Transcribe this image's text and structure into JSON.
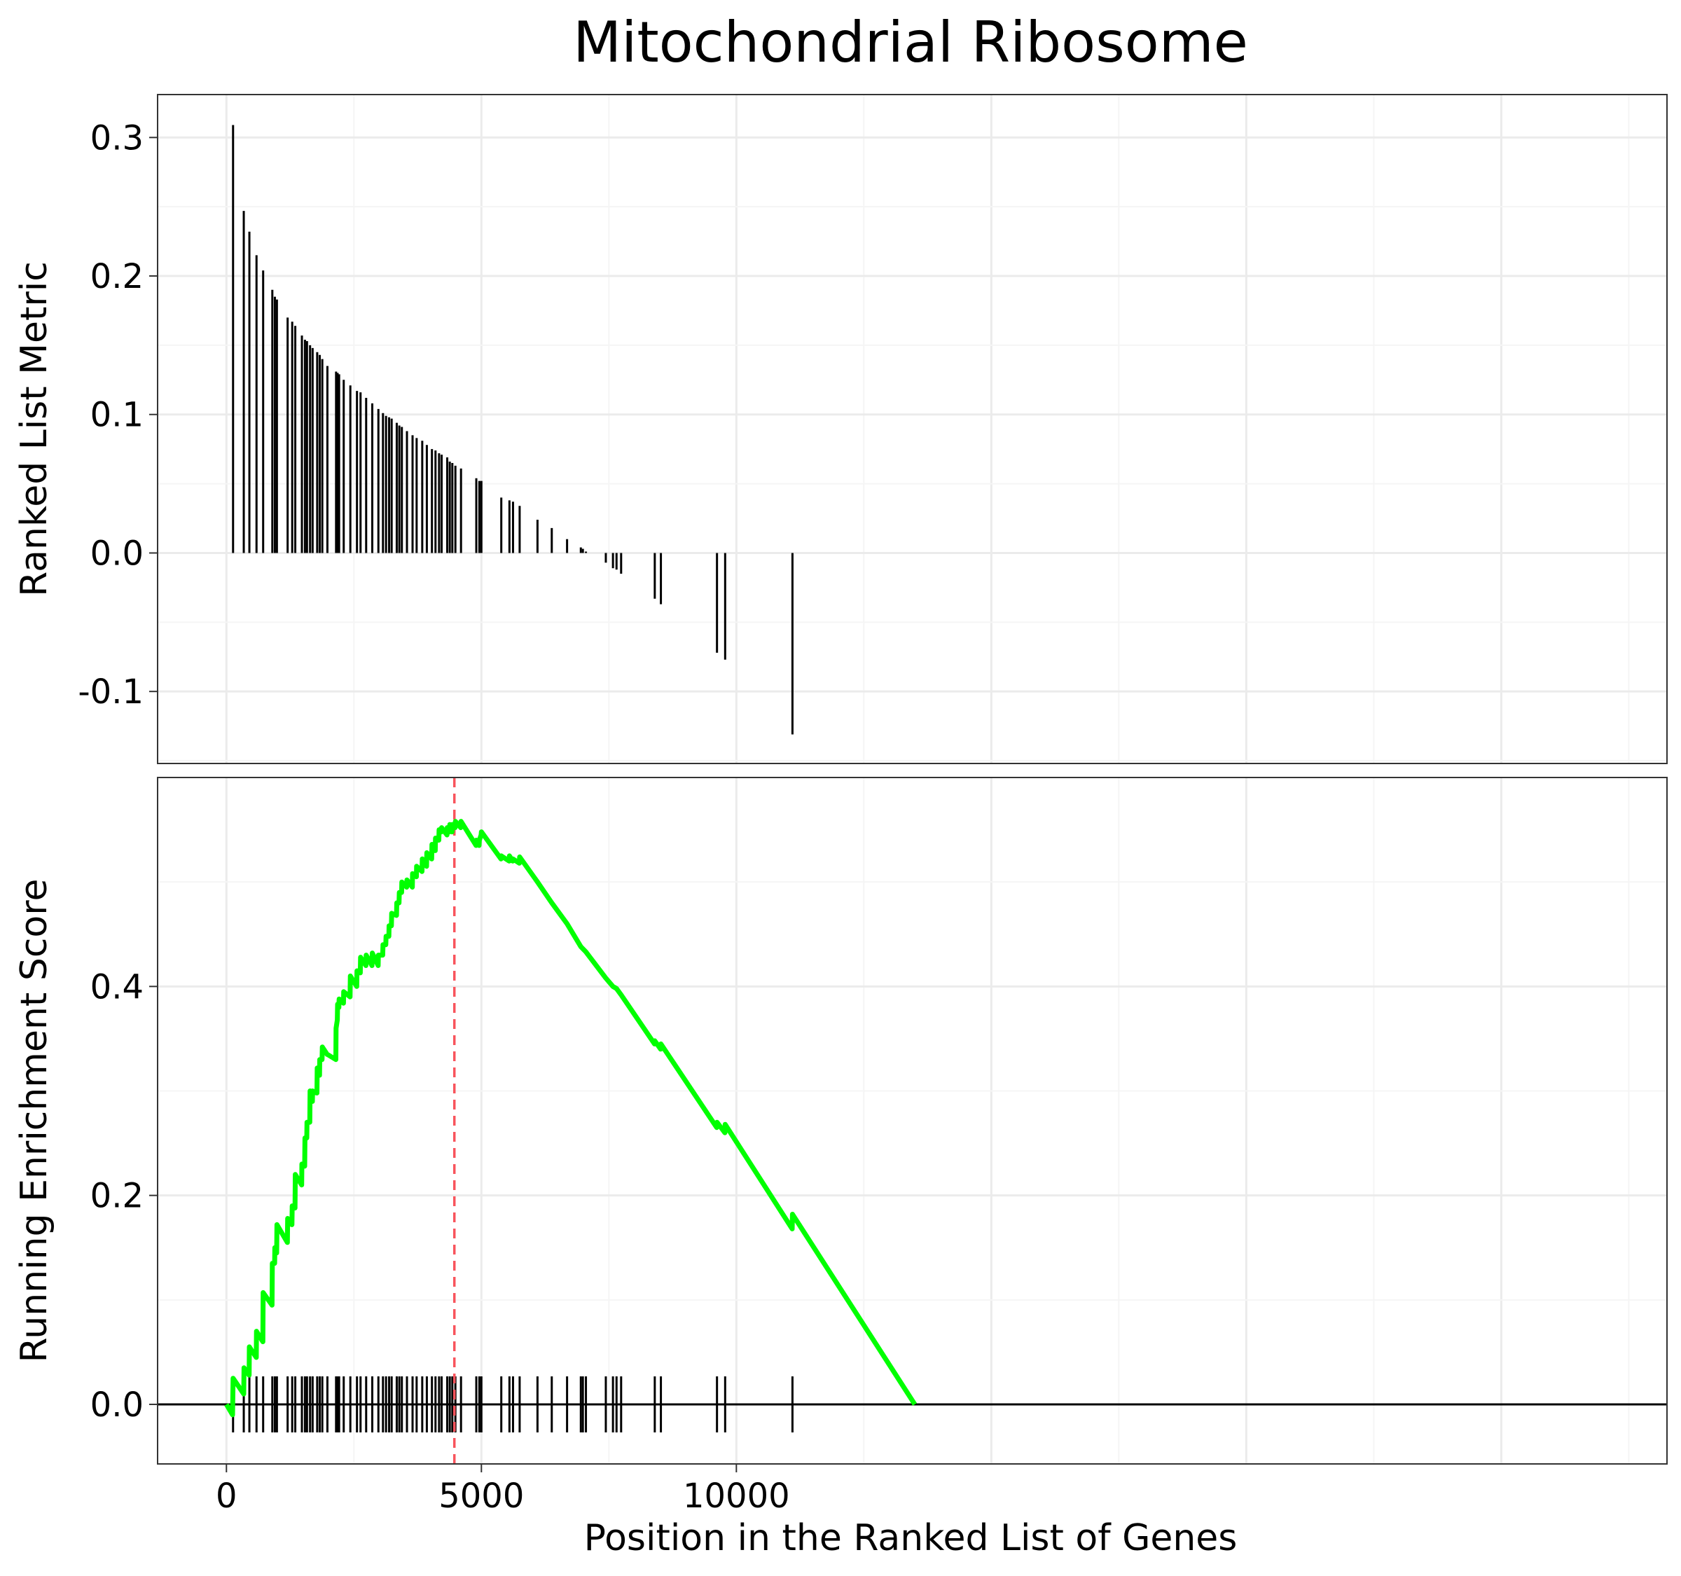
{
  "colors": {
    "background": "#ffffff",
    "panel_border": "#333333",
    "grid_major": "#ebebeb",
    "grid_minor": "#f5f5f5",
    "bar": "#000000",
    "es_line": "#00ff00",
    "peak_line": "#f8545c",
    "rug": "#000000"
  },
  "chart_data": {
    "type": "line",
    "title": "Mitochondrial Ribosome",
    "xlabel": "Position in the Ranked List of Genes",
    "xlim": [
      -1350,
      28250
    ],
    "xticks": [
      0,
      5000,
      10000
    ],
    "xtick_labels": [
      "0",
      "5000",
      "10000"
    ],
    "panels": [
      {
        "id": "ranked-metric",
        "type": "bar",
        "ylabel": "Ranked List Metric",
        "ylim": [
          -0.152,
          0.331
        ],
        "yticks": [
          -0.1,
          0.0,
          0.1,
          0.2,
          0.3
        ],
        "ytick_labels": [
          "-0.1",
          "0.0",
          "0.1",
          "0.2",
          "0.3"
        ],
        "points": [
          [
            130,
            0.309
          ],
          [
            340,
            0.247
          ],
          [
            450,
            0.232
          ],
          [
            590,
            0.215
          ],
          [
            720,
            0.204
          ],
          [
            900,
            0.19
          ],
          [
            950,
            0.185
          ],
          [
            990,
            0.183
          ],
          [
            1200,
            0.17
          ],
          [
            1290,
            0.167
          ],
          [
            1350,
            0.164
          ],
          [
            1480,
            0.157
          ],
          [
            1540,
            0.154
          ],
          [
            1580,
            0.153
          ],
          [
            1640,
            0.15
          ],
          [
            1690,
            0.148
          ],
          [
            1780,
            0.145
          ],
          [
            1830,
            0.143
          ],
          [
            1880,
            0.14
          ],
          [
            1980,
            0.135
          ],
          [
            2150,
            0.131
          ],
          [
            2180,
            0.13
          ],
          [
            2210,
            0.129
          ],
          [
            2300,
            0.125
          ],
          [
            2430,
            0.121
          ],
          [
            2560,
            0.117
          ],
          [
            2630,
            0.116
          ],
          [
            2740,
            0.112
          ],
          [
            2860,
            0.108
          ],
          [
            2980,
            0.104
          ],
          [
            3070,
            0.101
          ],
          [
            3130,
            0.099
          ],
          [
            3190,
            0.098
          ],
          [
            3240,
            0.097
          ],
          [
            3340,
            0.094
          ],
          [
            3390,
            0.092
          ],
          [
            3440,
            0.091
          ],
          [
            3540,
            0.088
          ],
          [
            3650,
            0.085
          ],
          [
            3730,
            0.083
          ],
          [
            3840,
            0.081
          ],
          [
            3930,
            0.078
          ],
          [
            4030,
            0.075
          ],
          [
            4100,
            0.074
          ],
          [
            4170,
            0.072
          ],
          [
            4220,
            0.071
          ],
          [
            4330,
            0.069
          ],
          [
            4380,
            0.066
          ],
          [
            4430,
            0.065
          ],
          [
            4490,
            0.063
          ],
          [
            4600,
            0.061
          ],
          [
            4900,
            0.054
          ],
          [
            4960,
            0.052
          ],
          [
            5000,
            0.052
          ],
          [
            5390,
            0.04
          ],
          [
            5550,
            0.038
          ],
          [
            5620,
            0.037
          ],
          [
            5750,
            0.034
          ],
          [
            6100,
            0.024
          ],
          [
            6380,
            0.018
          ],
          [
            6680,
            0.01
          ],
          [
            6950,
            0.004
          ],
          [
            6990,
            0.003
          ],
          [
            7050,
            0.001
          ],
          [
            7440,
            -0.007
          ],
          [
            7580,
            -0.011
          ],
          [
            7650,
            -0.012
          ],
          [
            7740,
            -0.015
          ],
          [
            8400,
            -0.033
          ],
          [
            8520,
            -0.037
          ],
          [
            9620,
            -0.072
          ],
          [
            9780,
            -0.077
          ],
          [
            11100,
            -0.131
          ]
        ]
      },
      {
        "id": "running-es",
        "type": "line",
        "ylabel": "Running Enrichment Score",
        "ylim": [
          -0.057,
          0.6
        ],
        "yticks": [
          0.0,
          0.2,
          0.4
        ],
        "ytick_labels": [
          "0.0",
          "0.2",
          "0.4"
        ],
        "series": [
          {
            "points": [
              [
                0,
                0
              ],
              [
                120,
                -0.01
              ],
              [
                130,
                0.025
              ],
              [
                340,
                0.01
              ],
              [
                345,
                0.035
              ],
              [
                445,
                0.028
              ],
              [
                450,
                0.055
              ],
              [
                585,
                0.045
              ],
              [
                590,
                0.07
              ],
              [
                715,
                0.06
              ],
              [
                720,
                0.107
              ],
              [
                895,
                0.095
              ],
              [
                900,
                0.135
              ],
              [
                945,
                0.135
              ],
              [
                950,
                0.15
              ],
              [
                985,
                0.145
              ],
              [
                990,
                0.172
              ],
              [
                1195,
                0.155
              ],
              [
                1200,
                0.178
              ],
              [
                1285,
                0.172
              ],
              [
                1290,
                0.19
              ],
              [
                1345,
                0.188
              ],
              [
                1350,
                0.22
              ],
              [
                1475,
                0.21
              ],
              [
                1480,
                0.23
              ],
              [
                1535,
                0.228
              ],
              [
                1540,
                0.255
              ],
              [
                1575,
                0.255
              ],
              [
                1580,
                0.27
              ],
              [
                1635,
                0.27
              ],
              [
                1640,
                0.3
              ],
              [
                1685,
                0.29
              ],
              [
                1690,
                0.3
              ],
              [
                1775,
                0.298
              ],
              [
                1780,
                0.322
              ],
              [
                1825,
                0.315
              ],
              [
                1830,
                0.33
              ],
              [
                1875,
                0.33
              ],
              [
                1880,
                0.342
              ],
              [
                1975,
                0.335
              ],
              [
                1980,
                0.335
              ],
              [
                2145,
                0.33
              ],
              [
                2150,
                0.36
              ],
              [
                2175,
                0.368
              ],
              [
                2180,
                0.383
              ],
              [
                2205,
                0.38
              ],
              [
                2210,
                0.388
              ],
              [
                2295,
                0.384
              ],
              [
                2300,
                0.395
              ],
              [
                2425,
                0.39
              ],
              [
                2430,
                0.41
              ],
              [
                2555,
                0.4
              ],
              [
                2560,
                0.415
              ],
              [
                2625,
                0.413
              ],
              [
                2630,
                0.428
              ],
              [
                2735,
                0.42
              ],
              [
                2740,
                0.43
              ],
              [
                2855,
                0.42
              ],
              [
                2860,
                0.432
              ],
              [
                2975,
                0.42
              ],
              [
                2980,
                0.43
              ],
              [
                3065,
                0.43
              ],
              [
                3070,
                0.44
              ],
              [
                3125,
                0.44
              ],
              [
                3130,
                0.448
              ],
              [
                3185,
                0.448
              ],
              [
                3190,
                0.458
              ],
              [
                3235,
                0.458
              ],
              [
                3240,
                0.47
              ],
              [
                3335,
                0.468
              ],
              [
                3340,
                0.48
              ],
              [
                3385,
                0.48
              ],
              [
                3390,
                0.49
              ],
              [
                3435,
                0.49
              ],
              [
                3440,
                0.5
              ],
              [
                3535,
                0.495
              ],
              [
                3540,
                0.502
              ],
              [
                3645,
                0.495
              ],
              [
                3650,
                0.508
              ],
              [
                3725,
                0.505
              ],
              [
                3730,
                0.515
              ],
              [
                3835,
                0.51
              ],
              [
                3840,
                0.522
              ],
              [
                3925,
                0.515
              ],
              [
                3930,
                0.528
              ],
              [
                4025,
                0.522
              ],
              [
                4030,
                0.536
              ],
              [
                4095,
                0.53
              ],
              [
                4100,
                0.542
              ],
              [
                4165,
                0.54
              ],
              [
                4170,
                0.55
              ],
              [
                4215,
                0.548
              ],
              [
                4220,
                0.552
              ],
              [
                4325,
                0.545
              ],
              [
                4330,
                0.552
              ],
              [
                4375,
                0.548
              ],
              [
                4380,
                0.555
              ],
              [
                4425,
                0.548
              ],
              [
                4430,
                0.555
              ],
              [
                4485,
                0.552
              ],
              [
                4490,
                0.558
              ],
              [
                4595,
                0.552
              ],
              [
                4600,
                0.558
              ],
              [
                4895,
                0.535
              ],
              [
                4900,
                0.54
              ],
              [
                4955,
                0.535
              ],
              [
                4960,
                0.54
              ],
              [
                4995,
                0.545
              ],
              [
                5000,
                0.548
              ],
              [
                5385,
                0.522
              ],
              [
                5390,
                0.525
              ],
              [
                5545,
                0.52
              ],
              [
                5550,
                0.525
              ],
              [
                5615,
                0.52
              ],
              [
                5620,
                0.522
              ],
              [
                5745,
                0.518
              ],
              [
                5750,
                0.524
              ],
              [
                6100,
                0.5
              ],
              [
                6380,
                0.48
              ],
              [
                6680,
                0.46
              ],
              [
                6950,
                0.438
              ],
              [
                7050,
                0.433
              ],
              [
                7440,
                0.408
              ],
              [
                7580,
                0.4
              ],
              [
                7650,
                0.398
              ],
              [
                7740,
                0.392
              ],
              [
                8395,
                0.345
              ],
              [
                8400,
                0.348
              ],
              [
                8515,
                0.34
              ],
              [
                8520,
                0.345
              ],
              [
                9615,
                0.265
              ],
              [
                9620,
                0.27
              ],
              [
                9775,
                0.26
              ],
              [
                9780,
                0.268
              ],
              [
                11095,
                0.168
              ],
              [
                11100,
                0.182
              ],
              [
                13500,
                0.0
              ]
            ]
          }
        ],
        "peak_x": 4470,
        "rug_x": [
          130,
          340,
          450,
          590,
          720,
          900,
          950,
          990,
          1200,
          1290,
          1350,
          1480,
          1540,
          1580,
          1640,
          1690,
          1780,
          1830,
          1880,
          1980,
          2150,
          2180,
          2210,
          2300,
          2430,
          2560,
          2630,
          2740,
          2860,
          2980,
          3070,
          3130,
          3190,
          3240,
          3340,
          3390,
          3440,
          3540,
          3650,
          3730,
          3840,
          3930,
          4030,
          4100,
          4170,
          4220,
          4330,
          4380,
          4430,
          4490,
          4600,
          4900,
          4960,
          5000,
          5390,
          5550,
          5620,
          5750,
          6100,
          6380,
          6680,
          6950,
          6990,
          7050,
          7440,
          7580,
          7650,
          7740,
          8400,
          8520,
          9620,
          9780,
          11100
        ]
      }
    ]
  }
}
